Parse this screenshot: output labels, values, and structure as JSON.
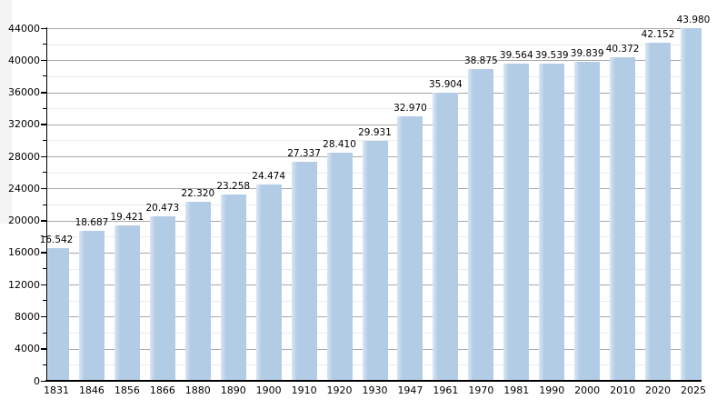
{
  "page": {
    "background_color": "#ffffff"
  },
  "chart_data": {
    "type": "bar",
    "title": "",
    "xlabel": "",
    "ylabel": "",
    "categories": [
      "1831",
      "1846",
      "1856",
      "1866",
      "1880",
      "1890",
      "1900",
      "1910",
      "1920",
      "1930",
      "1947",
      "1961",
      "1970",
      "1981",
      "1990",
      "2000",
      "2010",
      "2020",
      "2025"
    ],
    "values": [
      16542,
      18687,
      19421,
      20473,
      22320,
      23258,
      24474,
      27337,
      28410,
      29931,
      32970,
      35904,
      38875,
      39564,
      39539,
      39839,
      40372,
      42152,
      43980
    ],
    "value_labels": [
      "16.542",
      "18.687",
      "19.421",
      "20.473",
      "22.320",
      "23.258",
      "24.474",
      "27.337",
      "28.410",
      "29.931",
      "32.970",
      "35.904",
      "38.875",
      "39.564",
      "39.539",
      "39.839",
      "40.372",
      "42.152",
      "43.980"
    ],
    "ylim": [
      0,
      44000
    ],
    "y_major_step": 4000,
    "y_minor_step": 2000,
    "y_tick_labels": [
      "0",
      "4000",
      "8000",
      "12000",
      "16000",
      "20000",
      "24000",
      "28000",
      "32000",
      "36000",
      "40000",
      "44000"
    ],
    "grid": true,
    "legend": "none",
    "colors": {
      "bar_fill": "#b3cce6",
      "bar_highlight": "#d9e6f4",
      "major_grid": "#a8a8a8",
      "minor_grid": "#ececec",
      "axis": "#000000",
      "text": "#000000"
    }
  }
}
